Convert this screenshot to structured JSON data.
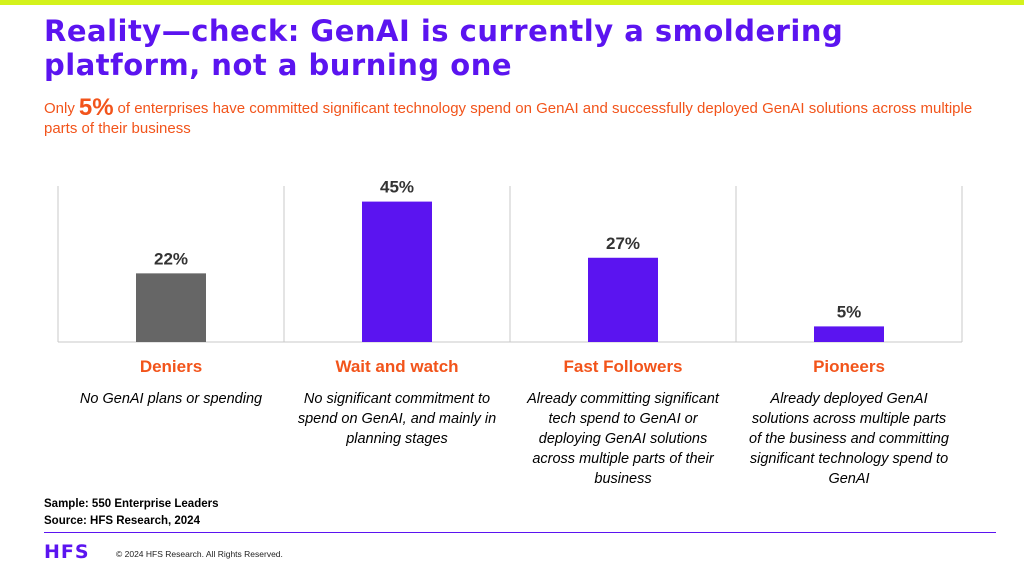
{
  "colors": {
    "accent": "#5b14f0",
    "bar_gray": "#666666",
    "orange": "#f2541b",
    "lime": "#d4f21c",
    "axis": "#c8c8c8"
  },
  "title": "Reality—check: GenAI is currently a smoldering platform, not a burning one",
  "subtitle": {
    "prefix": "Only",
    "highlight": "5%",
    "text": "of enterprises have committed significant technology spend on GenAI and successfully deployed GenAI solutions across multiple parts of their business"
  },
  "chart_data": {
    "type": "bar",
    "categories": [
      "Deniers",
      "Wait and watch",
      "Fast Followers",
      "Pioneers"
    ],
    "values": [
      22,
      45,
      27,
      5
    ],
    "value_labels": [
      "22%",
      "45%",
      "27%",
      "5%"
    ],
    "bar_colors": [
      "#666666",
      "#5b14f0",
      "#5b14f0",
      "#5b14f0"
    ],
    "descriptions": [
      "No GenAI plans or spending",
      "No significant commitment to spend on GenAI, and mainly in planning stages",
      "Already committing significant tech spend to GenAI or deploying GenAI solutions across multiple parts of their business",
      "Already deployed GenAI solutions across multiple parts of the business and committing significant technology spend to GenAI"
    ],
    "ylim": [
      0,
      50
    ],
    "grid": false
  },
  "footer": {
    "sample": "Sample: 550 Enterprise Leaders",
    "source": "Source: HFS Research, 2024",
    "logo": "HFS",
    "copyright": "© 2024 HFS Research. All Rights Reserved."
  }
}
